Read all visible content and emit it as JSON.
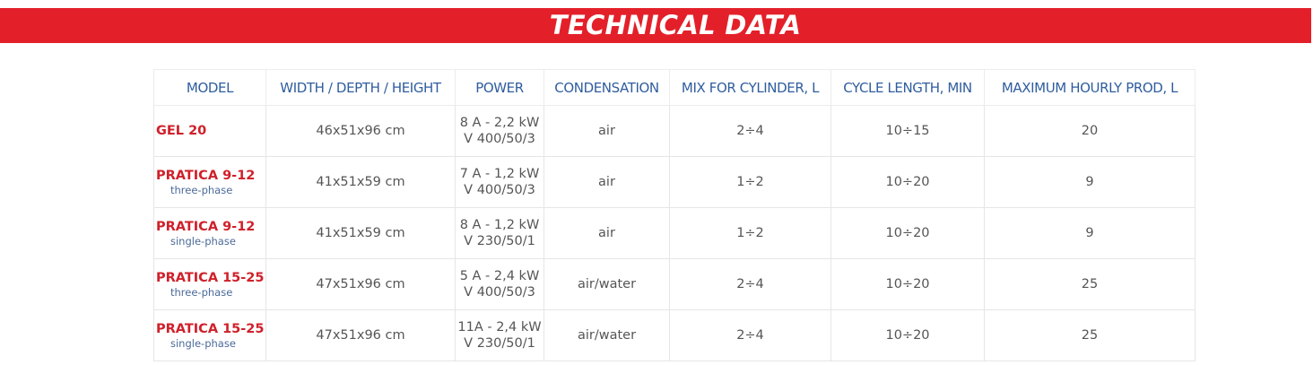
{
  "header": {
    "title": "TECHNICAL DATA"
  },
  "table": {
    "columns": [
      "MODEL",
      "WIDTH / DEPTH / HEIGHT",
      "POWER",
      "CONDENSATION",
      "MIX FOR CYLINDER, L",
      "CYCLE LENGTH, MIN",
      "MAXIMUM HOURLY PROD, L"
    ],
    "rows": [
      {
        "model": "GEL 20",
        "size": "46x51x96 cm",
        "power": [
          "8 A - 2,2 kW",
          "V 400/50/3"
        ],
        "condensation": "air",
        "mix": "2÷4",
        "cycle": "10÷15",
        "production": "20"
      },
      {
        "model": "PRATICA 9-12",
        "variant": "three-phase",
        "size": "41x51x59 cm",
        "power": [
          "7 A - 1,2 kW",
          "V 400/50/3"
        ],
        "condensation": "air",
        "mix": "1÷2",
        "cycle": "10÷20",
        "production": "9"
      },
      {
        "model": "PRATICA 9-12",
        "variant": "single-phase",
        "size": "41x51x59 cm",
        "power": [
          "8 A - 1,2 kW",
          "V 230/50/1"
        ],
        "condensation": "air",
        "mix": "1÷2",
        "cycle": "10÷20",
        "production": "9"
      },
      {
        "model": "PRATICA 15-25",
        "variant": "three-phase",
        "size": "47x51x96 cm",
        "power": [
          "5 A - 2,4 kW",
          "V 400/50/3"
        ],
        "condensation": "air/water",
        "mix": "2÷4",
        "cycle": "10÷20",
        "production": "25"
      },
      {
        "model": "PRATICA 15-25",
        "variant": "single-phase",
        "size": "47x51x96 cm",
        "power": [
          "11A - 2,4 kW",
          "V 230/50/1"
        ],
        "condensation": "air/water",
        "mix": "2÷4",
        "cycle": "10÷20",
        "production": "25"
      }
    ]
  }
}
